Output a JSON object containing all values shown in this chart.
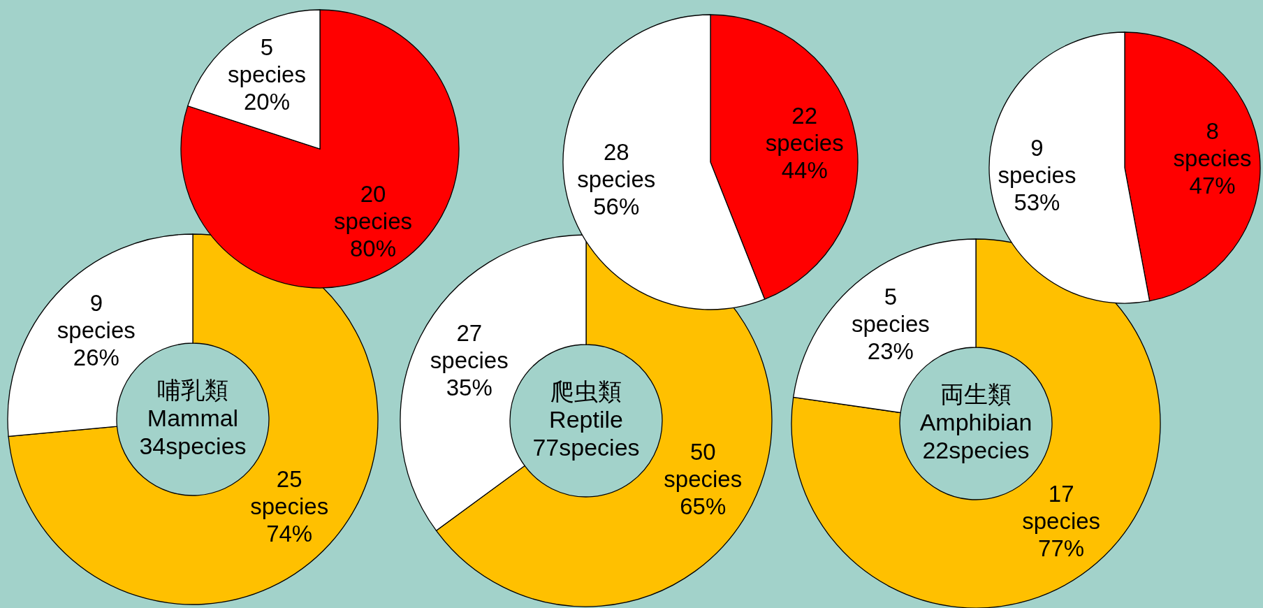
{
  "chart_data": [
    {
      "type": "pie",
      "categories": [
        null,
        null
      ],
      "values": [
        20,
        5
      ],
      "colors": [
        "#ff0000",
        "#ffffff"
      ],
      "value_labels": [
        "20\nspecies\n80%",
        "5\nspecies\n20%"
      ]
    },
    {
      "type": "pie",
      "categories": [
        null,
        null
      ],
      "values": [
        22,
        28
      ],
      "colors": [
        "#ff0000",
        "#ffffff"
      ],
      "value_labels": [
        "22\nspecies\n44%",
        "28\nspecies\n56%"
      ]
    },
    {
      "type": "pie",
      "categories": [
        null,
        null
      ],
      "values": [
        8,
        9
      ],
      "colors": [
        "#ff0000",
        "#ffffff"
      ],
      "value_labels": [
        "8\nspecies\n47%",
        "9\nspecies\n53%"
      ]
    },
    {
      "type": "donut",
      "title": "哺乳類\nMammal\n34species",
      "categories": [
        null,
        null
      ],
      "values": [
        25,
        9
      ],
      "colors": [
        "#ffc000",
        "#ffffff"
      ],
      "value_labels": [
        "25\nspecies\n74%",
        "9\nspecies\n26%"
      ]
    },
    {
      "type": "donut",
      "title": "爬虫類\nReptile\n77species",
      "categories": [
        null,
        null
      ],
      "values": [
        50,
        27
      ],
      "colors": [
        "#ffc000",
        "#ffffff"
      ],
      "value_labels": [
        "50\nspecies\n65%",
        "27\nspecies\n35%"
      ]
    },
    {
      "type": "donut",
      "title": "両生類\nAmphibian\n22species",
      "categories": [
        null,
        null
      ],
      "values": [
        17,
        5
      ],
      "colors": [
        "#ffc000",
        "#ffffff"
      ],
      "value_labels": [
        "17\nspecies\n77%",
        "5\nspecies\n23%"
      ]
    }
  ]
}
